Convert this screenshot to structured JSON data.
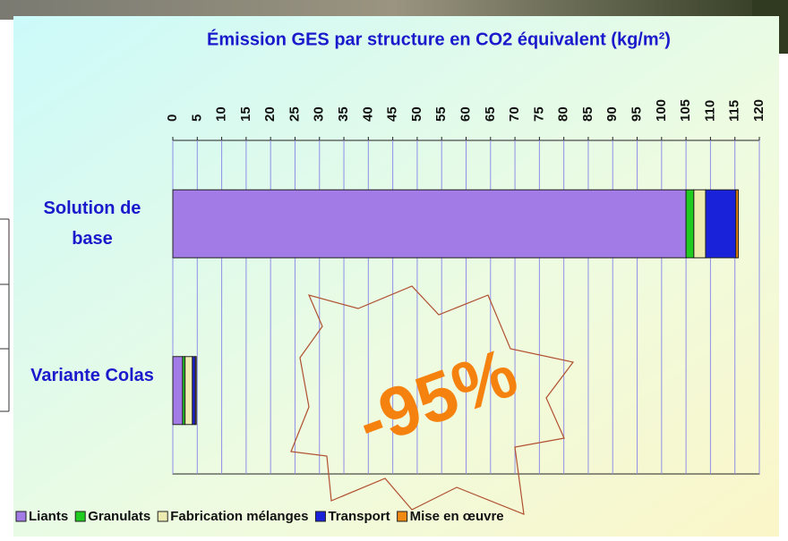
{
  "chart_data": {
    "type": "stacked-barh",
    "title": "Émission GES par structure en CO2 équivalent (kg/m²)",
    "categories": [
      "Solution de base",
      "Variante Colas"
    ],
    "series": [
      {
        "name": "Liants",
        "color": "#a27be6",
        "values": [
          105,
          2
        ]
      },
      {
        "name": "Granulats",
        "color": "#1fcc1f",
        "values": [
          1.6,
          0.5
        ]
      },
      {
        "name": "Fabrication mélanges",
        "color": "#ecebb0",
        "values": [
          2.4,
          1.5
        ]
      },
      {
        "name": "Transport",
        "color": "#1a22d9",
        "values": [
          6.2,
          0.6
        ]
      },
      {
        "name": "Mise en œuvre",
        "color": "#f08a10",
        "values": [
          0.5,
          0.2
        ]
      }
    ],
    "xlim": [
      0,
      120
    ],
    "xticks": [
      0,
      5,
      10,
      15,
      20,
      25,
      30,
      35,
      40,
      45,
      50,
      55,
      60,
      65,
      70,
      75,
      80,
      85,
      90,
      95,
      100,
      105,
      110,
      115,
      120
    ],
    "grid": true,
    "legend": "bottom",
    "annotation": "-95%"
  }
}
